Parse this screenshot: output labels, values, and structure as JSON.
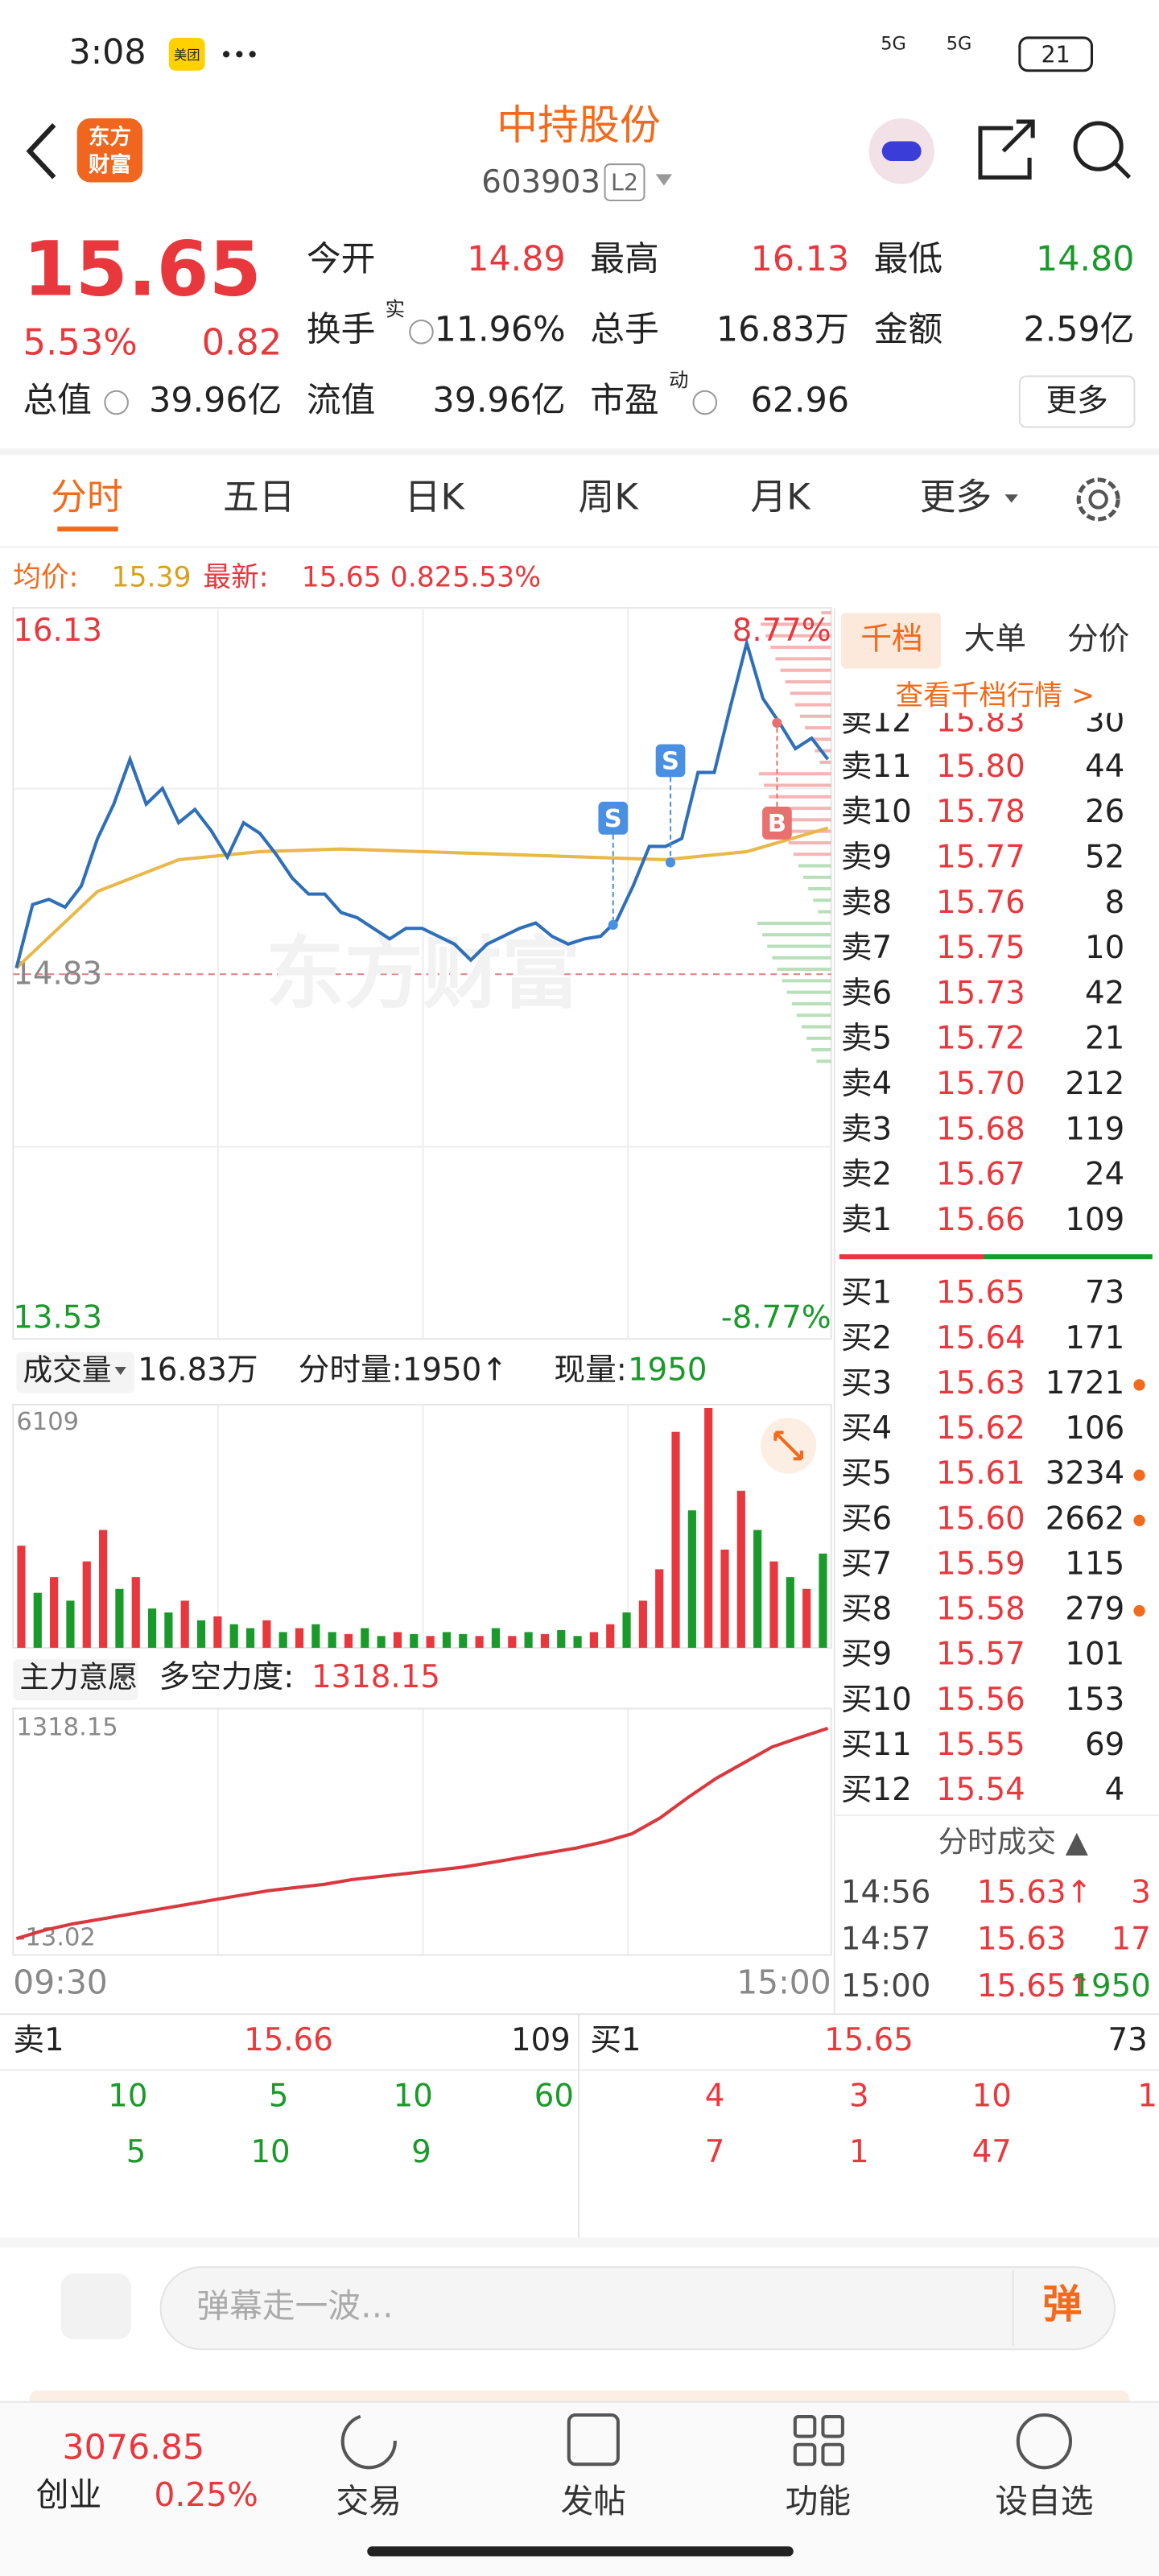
{
  "status_bar": {
    "time": "3:08",
    "app": "美团",
    "network": [
      "5G",
      "5G"
    ],
    "battery": "21"
  },
  "header": {
    "logo": [
      "东方",
      "财富"
    ],
    "title": "中持股份",
    "code": "603903",
    "level": "L2"
  },
  "quote": {
    "price": "15.65",
    "change_pct": "5.53%",
    "change": "0.82",
    "fields": [
      {
        "label": "今开",
        "value": "14.89",
        "color": "#e8383d"
      },
      {
        "label": "最高",
        "value": "16.13",
        "color": "#e8383d"
      },
      {
        "label": "最低",
        "value": "14.80",
        "color": "#1a9a2a"
      },
      {
        "label": "换手",
        "sup": "实",
        "value": "11.96%",
        "color": "#222222"
      },
      {
        "label": "总手",
        "value": "16.83万",
        "color": "#222222"
      },
      {
        "label": "金额",
        "value": "2.59亿",
        "color": "#222222"
      },
      {
        "label": "总值",
        "value": "39.96亿",
        "color": "#222222"
      },
      {
        "label": "流值",
        "value": "39.96亿",
        "color": "#222222"
      },
      {
        "label": "市盈",
        "sup": "动",
        "value": "62.96",
        "color": "#222222"
      }
    ],
    "more": "更多"
  },
  "tabs": [
    "分时",
    "五日",
    "日K",
    "周K",
    "月K",
    "更多"
  ],
  "info": {
    "avg_label": "均价:",
    "avg": "15.39",
    "latest_label": "最新:",
    "latest": "15.65",
    "change": "0.82",
    "change_pct": "5.53%"
  },
  "chart_data": [
    {
      "type": "line",
      "watermark": "东方财富",
      "series": [
        {
          "name": "price",
          "color": "#2f6fb8",
          "values": [
            14.86,
            15.1,
            15.12,
            15.09,
            15.17,
            15.35,
            15.48,
            15.65,
            15.48,
            15.54,
            15.41,
            15.46,
            15.38,
            15.28,
            15.41,
            15.37,
            15.29,
            15.2,
            15.14,
            15.14,
            15.07,
            15.05,
            15.01,
            14.97,
            15.01,
            15.01,
            14.98,
            14.95,
            14.89,
            14.95,
            14.98,
            15.01,
            15.03,
            14.98,
            14.95,
            14.97,
            14.98,
            15.04,
            15.17,
            15.32,
            15.32,
            15.35,
            15.6,
            15.6,
            15.85,
            16.09,
            15.88,
            15.79,
            15.69,
            15.73,
            15.65
          ]
        },
        {
          "name": "avg",
          "color": "#e8b84a",
          "values": [
            14.86,
            15.15,
            15.27,
            15.3,
            15.31,
            15.3,
            15.29,
            15.28,
            15.27,
            15.3,
            15.39
          ]
        }
      ],
      "annotations": [
        {
          "text": "S",
          "color": "#4a90e2"
        },
        {
          "text": "S",
          "color": "#4a90e2"
        },
        {
          "text": "B",
          "color": "#e8716f"
        }
      ],
      "ylim": [
        13.53,
        16.13
      ],
      "yticks": [
        16.13,
        14.83,
        13.53
      ],
      "y2lim": [
        -8.77,
        8.77
      ],
      "y2ticks": [
        {
          "value": 8.77,
          "label": "8.77%"
        },
        {
          "value": -8.77,
          "label": "-8.77%"
        }
      ]
    },
    {
      "type": "bar",
      "header": {
        "label": "成交量",
        "total": "16.83万",
        "minute": "分时量:1950↑",
        "current_label": "现量:",
        "current": "1950"
      },
      "values": [
        2600,
        1400,
        1800,
        1200,
        2200,
        3000,
        1500,
        1800,
        1000,
        900,
        1200,
        700,
        800,
        600,
        500,
        700,
        400,
        500,
        600,
        400,
        350,
        500,
        300,
        400,
        350,
        300,
        400,
        350,
        300,
        500,
        300,
        400,
        350,
        450,
        300,
        400,
        600,
        900,
        1200,
        2000,
        5500,
        3500,
        6109,
        2500,
        4000,
        3000,
        2200,
        1800,
        1500,
        2400
      ],
      "colors": [
        "#e8383d",
        "#1a9a2a",
        "#e8383d",
        "#1a9a2a",
        "#e8383d",
        "#e8383d",
        "#1a9a2a",
        "#e8383d",
        "#1a9a2a",
        "#1a9a2a",
        "#e8383d",
        "#1a9a2a",
        "#e8383d",
        "#1a9a2a",
        "#1a9a2a",
        "#e8383d",
        "#1a9a2a",
        "#e8383d",
        "#1a9a2a",
        "#1a9a2a",
        "#e8383d",
        "#1a9a2a",
        "#1a9a2a",
        "#e8383d",
        "#1a9a2a",
        "#e8383d",
        "#1a9a2a",
        "#1a9a2a",
        "#e8383d",
        "#1a9a2a",
        "#e8383d",
        "#1a9a2a",
        "#e8383d",
        "#1a9a2a",
        "#1a9a2a",
        "#e8383d",
        "#e8383d",
        "#1a9a2a",
        "#e8383d",
        "#e8383d",
        "#e8383d",
        "#1a9a2a",
        "#e8383d",
        "#e8383d",
        "#e8383d",
        "#1a9a2a",
        "#e8383d",
        "#1a9a2a",
        "#e8383d",
        "#1a9a2a"
      ],
      "ylim": [
        0,
        6109
      ],
      "yticks": [
        6109
      ]
    },
    {
      "type": "line",
      "header": {
        "label": "主力意愿",
        "metric_label": "多空力度:",
        "metric": "1318.15"
      },
      "series": [
        {
          "name": "force",
          "color": "#d9393e",
          "values": [
            -13.02,
            40,
            80,
            110,
            140,
            170,
            200,
            230,
            260,
            290,
            310,
            330,
            360,
            380,
            400,
            420,
            440,
            470,
            500,
            530,
            560,
            600,
            650,
            750,
            880,
            1000,
            1100,
            1200,
            1260,
            1318.15
          ]
        }
      ],
      "ylim": [
        -13.02,
        1318.15
      ],
      "yticks": [
        1318.15,
        -13.02
      ],
      "x_labels": [
        "09:30",
        "15:00"
      ]
    }
  ],
  "order_book": {
    "tabs": [
      "千档",
      "大单",
      "分价"
    ],
    "link": "查看千档行情 >",
    "sells": [
      {
        "label": "卖12",
        "price": "15.83",
        "volume": "30"
      },
      {
        "label": "卖11",
        "price": "15.80",
        "volume": "44"
      },
      {
        "label": "卖10",
        "price": "15.78",
        "volume": "26"
      },
      {
        "label": "卖9",
        "price": "15.77",
        "volume": "52"
      },
      {
        "label": "卖8",
        "price": "15.76",
        "volume": "8"
      },
      {
        "label": "卖7",
        "price": "15.75",
        "volume": "10"
      },
      {
        "label": "卖6",
        "price": "15.73",
        "volume": "42"
      },
      {
        "label": "卖5",
        "price": "15.72",
        "volume": "21"
      },
      {
        "label": "卖4",
        "price": "15.70",
        "volume": "212"
      },
      {
        "label": "卖3",
        "price": "15.68",
        "volume": "119"
      },
      {
        "label": "卖2",
        "price": "15.67",
        "volume": "24"
      },
      {
        "label": "卖1",
        "price": "15.66",
        "volume": "109"
      }
    ],
    "buys": [
      {
        "label": "买1",
        "price": "15.65",
        "volume": "73",
        "dot": false
      },
      {
        "label": "买2",
        "price": "15.64",
        "volume": "171",
        "dot": false
      },
      {
        "label": "买3",
        "price": "15.63",
        "volume": "1721",
        "dot": true
      },
      {
        "label": "买4",
        "price": "15.62",
        "volume": "106",
        "dot": false
      },
      {
        "label": "买5",
        "price": "15.61",
        "volume": "3234",
        "dot": true
      },
      {
        "label": "买6",
        "price": "15.60",
        "volume": "2662",
        "dot": true
      },
      {
        "label": "买7",
        "price": "15.59",
        "volume": "115",
        "dot": false
      },
      {
        "label": "买8",
        "price": "15.58",
        "volume": "279",
        "dot": true
      },
      {
        "label": "买9",
        "price": "15.57",
        "volume": "101",
        "dot": false
      },
      {
        "label": "买10",
        "price": "15.56",
        "volume": "153",
        "dot": false
      },
      {
        "label": "买11",
        "price": "15.55",
        "volume": "69",
        "dot": false
      },
      {
        "label": "买12",
        "price": "15.54",
        "volume": "4",
        "dot": false
      }
    ],
    "trades_title": "分时成交 ▲",
    "trades": [
      {
        "time": "14:56",
        "price": "15.63↑",
        "volume": "3",
        "volume_color": "#e8383d"
      },
      {
        "time": "14:57",
        "price": "15.63",
        "volume": "17",
        "volume_color": "#e8383d"
      },
      {
        "time": "15:00",
        "price": "15.65↑",
        "volume": "1950",
        "volume_color": "#1a9a2a"
      }
    ]
  },
  "bottom_panel": {
    "sell_label": "卖1",
    "sell_price": "15.66",
    "sell_volume": "109",
    "buy_label": "买1",
    "buy_price": "15.65",
    "buy_volume": "73",
    "sell_rows": [
      [
        "10",
        "5",
        "10",
        "60"
      ],
      [
        "5",
        "10",
        "9"
      ]
    ],
    "buy_rows": [
      [
        "4",
        "3",
        "10",
        "1"
      ],
      [
        "7",
        "1",
        "47"
      ]
    ]
  },
  "comment": {
    "placeholder": "弹幕走一波…",
    "button": "弹"
  },
  "nav": {
    "index_value": "3076.85",
    "index_name": "创业",
    "index_change": "0.25%",
    "items": [
      "交易",
      "发帖",
      "功能",
      "设自选"
    ]
  }
}
